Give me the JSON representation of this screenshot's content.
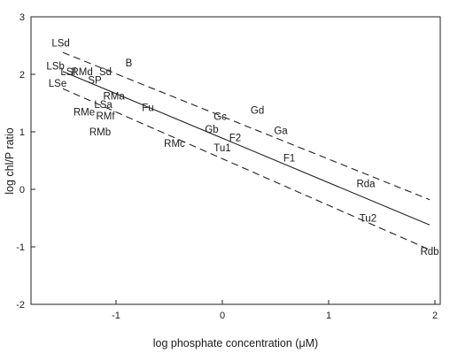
{
  "chart_data": {
    "type": "scatter",
    "xlabel": "log phosphate concentration (μM)",
    "ylabel": "log chl/P ratio",
    "xlim": [
      -1.8,
      2.05
    ],
    "ylim": [
      -2,
      3
    ],
    "xticks": [
      -1,
      0,
      1,
      2
    ],
    "yticks": [
      -2,
      -1,
      0,
      1,
      2,
      3
    ],
    "grid": false,
    "points": [
      {
        "label": "LSd",
        "x": -1.52,
        "y": 2.55
      },
      {
        "label": "LSb",
        "x": -1.57,
        "y": 2.15
      },
      {
        "label": "LSf",
        "x": -1.45,
        "y": 2.05
      },
      {
        "label": "RMd",
        "x": -1.32,
        "y": 2.05
      },
      {
        "label": "Sd",
        "x": -1.1,
        "y": 2.05
      },
      {
        "label": "SP",
        "x": -1.2,
        "y": 1.9
      },
      {
        "label": "B",
        "x": -0.88,
        "y": 2.2
      },
      {
        "label": "LSe",
        "x": -1.55,
        "y": 1.85
      },
      {
        "label": "RMa",
        "x": -1.02,
        "y": 1.62
      },
      {
        "label": "LSa",
        "x": -1.12,
        "y": 1.48
      },
      {
        "label": "Fu",
        "x": -0.7,
        "y": 1.42
      },
      {
        "label": "RMe",
        "x": -1.3,
        "y": 1.35
      },
      {
        "label": "RMf",
        "x": -1.1,
        "y": 1.28
      },
      {
        "label": "RMb",
        "x": -1.15,
        "y": 1.0
      },
      {
        "label": "RMc",
        "x": -0.45,
        "y": 0.8
      },
      {
        "label": "Gc",
        "x": -0.02,
        "y": 1.27
      },
      {
        "label": "Gd",
        "x": 0.33,
        "y": 1.38
      },
      {
        "label": "Gb",
        "x": -0.1,
        "y": 1.05
      },
      {
        "label": "F2",
        "x": 0.12,
        "y": 0.9
      },
      {
        "label": "Ga",
        "x": 0.55,
        "y": 1.02
      },
      {
        "label": "Tu1",
        "x": 0.0,
        "y": 0.72
      },
      {
        "label": "F1",
        "x": 0.63,
        "y": 0.55
      },
      {
        "label": "Rda",
        "x": 1.35,
        "y": 0.1
      },
      {
        "label": "Tu2",
        "x": 1.37,
        "y": -0.5
      },
      {
        "label": "Rdb",
        "x": 1.95,
        "y": -1.08
      }
    ],
    "regression": {
      "x": [
        -1.5,
        1.95
      ],
      "y": [
        2.05,
        -0.62
      ]
    },
    "confidence_upper": {
      "x": [
        -1.5,
        1.95
      ],
      "y": [
        2.38,
        -0.18
      ]
    },
    "confidence_lower": {
      "x": [
        -1.5,
        1.95
      ],
      "y": [
        1.75,
        -1.05
      ]
    }
  }
}
